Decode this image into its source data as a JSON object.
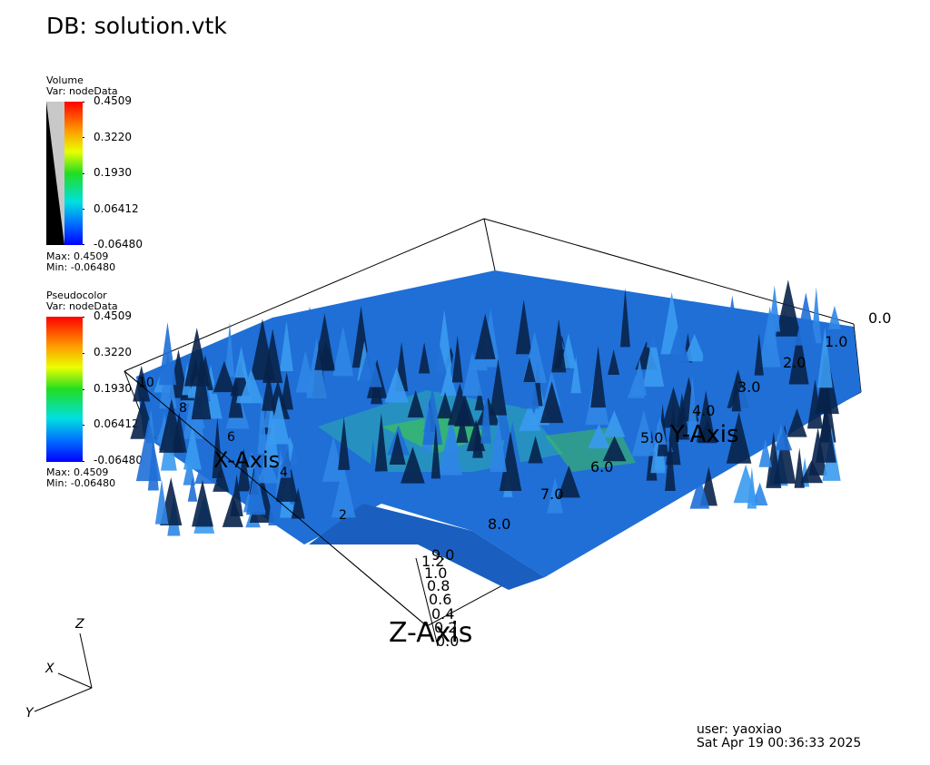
{
  "header": {
    "db_label": "DB: solution.vtk"
  },
  "legend_volume": {
    "plot_type": "Volume",
    "var_label": "Var: nodeData",
    "ticks": [
      "0.4509",
      "0.3220",
      "0.1930",
      "0.06412",
      "-0.06480"
    ],
    "max_label": "Max:  0.4509",
    "min_label": "Min: -0.06480"
  },
  "legend_pseudocolor": {
    "plot_type": "Pseudocolor",
    "var_label": "Var: nodeData",
    "ticks": [
      "0.4509",
      "0.3220",
      "0.1930",
      "0.06412",
      "-0.06480"
    ],
    "max_label": "Max:  0.4509",
    "min_label": "Min: -0.06480"
  },
  "axes": {
    "x_title": "X-Axis",
    "y_title": "Y-Axis",
    "z_title": "Z-Axis",
    "x_ticks": [
      "10",
      "8",
      "6",
      "4",
      "2"
    ],
    "y_ticks": [
      "0.0",
      "1.0",
      "2.0",
      "3.0",
      "4.0",
      "5.0",
      "6.0",
      "7.0",
      "8.0",
      "9.0"
    ],
    "z_ticks": [
      "0.0",
      "0.2",
      "0.4",
      "0.6",
      "0.8",
      "1.0",
      "1.2"
    ]
  },
  "triad": {
    "x": "X",
    "y": "Y",
    "z": "Z"
  },
  "footer": {
    "user": "user: yaoxiao",
    "timestamp": "Sat Apr 19 00:36:33 2025"
  },
  "colors": {
    "surface_base": "#1f6fd6",
    "surface_dark": "#08224a",
    "surface_green": "#3fc84a",
    "surface_cyan": "#2fd0d0"
  }
}
